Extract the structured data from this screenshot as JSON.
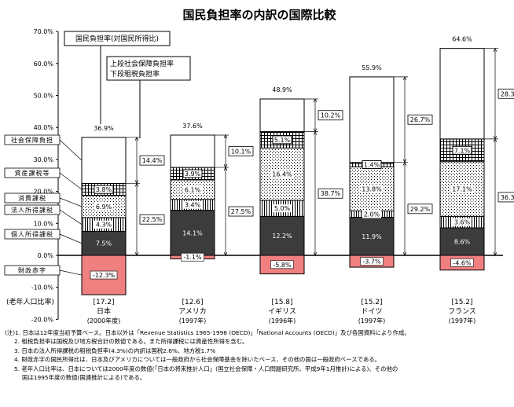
{
  "chart_data": {
    "type": "bar",
    "title": "国民負担率の内訳の国際比較",
    "ylim": [
      -20,
      70
    ],
    "yticks": [
      "70.0%",
      "60.0%",
      "50.0%",
      "40.0%",
      "30.0%",
      "20.0%",
      "10.0%",
      "0.0%",
      "-10.0%",
      "-20.0%"
    ],
    "ytick_values": [
      70,
      60,
      50,
      40,
      30,
      20,
      10,
      0,
      -10,
      -20
    ],
    "legend_top": {
      "total": "国民負担率(対国民所得比)",
      "upper": "上段社会保障負担率",
      "lower": "下段租税負担率"
    },
    "component_labels": {
      "social": "社会保障負担",
      "asset": "資産課税等",
      "consumption": "消費課税",
      "corporate": "法人所得課税",
      "personal": "個人所得課税",
      "deficit": "財政赤字"
    },
    "elderly_label": "(老年人口比率)",
    "categories": [
      {
        "name": "日本",
        "year": "(2000年度)",
        "elderly": "[17.2]",
        "total_label": "36.9%",
        "personal": 7.5,
        "corporate": 4.3,
        "consumption": 6.9,
        "asset": 3.8,
        "social": 14.4,
        "deficit": -12.3,
        "labels": {
          "personal": "7.5%",
          "corporate": "4.3%",
          "consumption": "6.9%",
          "asset": "3.8%",
          "deficit": "-12.3%"
        },
        "social_label": "14.4%",
        "tax_label": "22.5%"
      },
      {
        "name": "アメリカ",
        "year": "(1997年)",
        "elderly": "[12.6]",
        "total_label": "37.6%",
        "personal": 14.1,
        "corporate": 3.4,
        "consumption": 6.1,
        "asset": 3.9,
        "social": 10.1,
        "deficit": -1.1,
        "labels": {
          "personal": "14.1%",
          "corporate": "3.4%",
          "consumption": "6.1%",
          "asset": "3.9%",
          "deficit": "-1.1%"
        },
        "social_label": "10.1%",
        "tax_label": "27.5%"
      },
      {
        "name": "イギリス",
        "year": "(1996年)",
        "elderly": "[15.8]",
        "total_label": "48.9%",
        "personal": 12.2,
        "corporate": 5.0,
        "consumption": 16.4,
        "asset": 5.1,
        "social": 10.2,
        "deficit": -5.8,
        "labels": {
          "personal": "12.2%",
          "corporate": "5.0%",
          "consumption": "16.4%",
          "asset": "5.1%",
          "deficit": "-5.8%"
        },
        "social_label": "10.2%",
        "tax_label": "38.7%"
      },
      {
        "name": "ドイツ",
        "year": "(1997年)",
        "elderly": "[15.2]",
        "total_label": "55.9%",
        "personal": 11.9,
        "corporate": 2.0,
        "consumption": 13.8,
        "asset": 1.4,
        "social": 26.7,
        "deficit": -3.7,
        "labels": {
          "personal": "11.9%",
          "corporate": "2.0%",
          "consumption": "13.8%",
          "asset": "1.4%",
          "deficit": "-3.7%"
        },
        "social_label": "26.7%",
        "tax_label": "29.2%"
      },
      {
        "name": "フランス",
        "year": "(1997年)",
        "elderly": "[15.2]",
        "total_label": "64.6%",
        "personal": 8.6,
        "corporate": 3.6,
        "consumption": 17.1,
        "asset": 7.1,
        "social": 28.3,
        "deficit": -4.6,
        "labels": {
          "personal": "8.6%",
          "corporate": "3.6%",
          "consumption": "17.1%",
          "asset": "7.1%",
          "deficit": "-4.6%"
        },
        "social_label": "28.3%",
        "tax_label": "36.3%"
      }
    ]
  },
  "notes": [
    "(注)1. 日本は12年度当初予算ベース。日本以外は「Revenue Statistics 1965-1998 (OECD)」「National Accounts (OECD)」及び各国資料により作成。",
    "2. 租税負担率は国税及び地方税合計の数値である。また所得課税には資産性所得を含む。",
    "3. 日本の法人所得課税の租税負担率(4.3%)の内訳は国税2.6%、地方税1.7%",
    "4. 財政赤字の国民所得比は、日本及びアメリカについては一般政府から社会保障基金を除いたベース、その他の国は一般政府ベースである。",
    "5. 老年人口比率は、日本については2000年度の数値(「日本の将来推計人口」(国立社会保障・人口問題研究所、平成9年1月推計)による)、その他の",
    "国は1995年度の数値(国連推計による)である。"
  ]
}
